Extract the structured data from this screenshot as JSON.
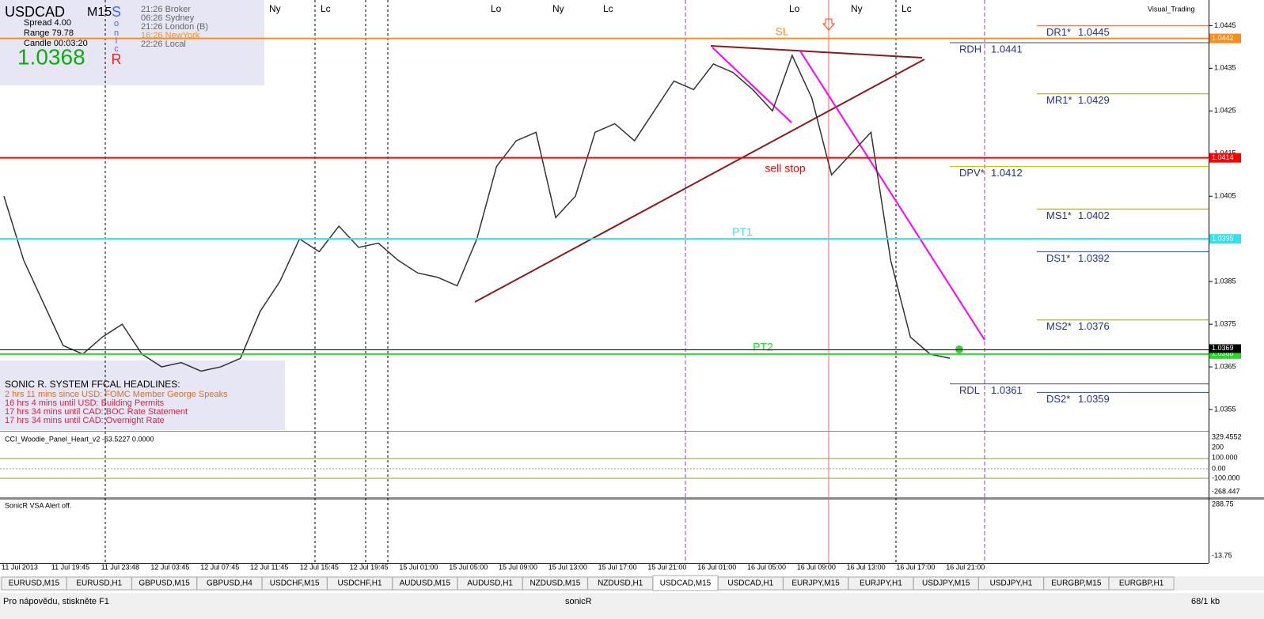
{
  "info": {
    "symbol": "USDCAD",
    "timeframe": "M15",
    "spread": "Spread   4.00",
    "range": "Range   79.78",
    "candle": "Candle   00:03:20",
    "price": "1.0368",
    "sonic": [
      "S",
      "o",
      "n",
      "i",
      "c",
      "R"
    ],
    "clocks": [
      "21:26 Broker",
      "06:26 Sydney",
      "21:26 London (B)",
      "16:26 NewYork",
      "22:26 Local"
    ]
  },
  "corner_label": "Visual_Trading",
  "sessions": [
    "Ny",
    "Lc",
    "Lo",
    "Ny",
    "Lc",
    "Lo",
    "Ny",
    "Lc"
  ],
  "price_chart": {
    "ylim": [
      1.035,
      1.0451
    ],
    "yticks": [
      1.0445,
      1.0435,
      1.0425,
      1.0415,
      1.0405,
      1.0395,
      1.0385,
      1.0375,
      1.0365,
      1.0355
    ],
    "closes": [
      1.0405,
      1.039,
      1.038,
      1.037,
      1.0368,
      1.0372,
      1.0375,
      1.0368,
      1.0365,
      1.0366,
      1.0364,
      1.0365,
      1.0367,
      1.0378,
      1.0385,
      1.0395,
      1.0392,
      1.0398,
      1.0393,
      1.0394,
      1.039,
      1.0387,
      1.0386,
      1.0384,
      1.0395,
      1.0412,
      1.0418,
      1.042,
      1.04,
      1.0405,
      1.042,
      1.0422,
      1.0418,
      1.0425,
      1.0432,
      1.043,
      1.0436,
      1.0434,
      1.043,
      1.0425,
      1.0438,
      1.0428,
      1.041,
      1.0415,
      1.042,
      1.039,
      1.0372,
      1.0368,
      1.0367
    ]
  },
  "levels": [
    {
      "label": "SL",
      "value": 1.0442,
      "color": "#ff8c1a"
    },
    {
      "label": "sell stop",
      "value": 1.0414,
      "color": "#ff0000"
    },
    {
      "label": "PT1",
      "value": 1.0395,
      "color": "#33e0ee"
    },
    {
      "label": "PT2",
      "value": 1.0368,
      "color": "#22dd22"
    }
  ],
  "bid_line": 1.0369,
  "pivots_daily": [
    {
      "name": "RDH",
      "value": 1.0441,
      "color": "#3344aa"
    },
    {
      "name": "DPV*",
      "value": 1.0412,
      "color": "#c8c800"
    },
    {
      "name": "RDL",
      "value": 1.0361,
      "color": "#3344aa"
    }
  ],
  "pivots_weekly": [
    {
      "name": "DR1*",
      "value": 1.0445,
      "color": "#ff6040"
    },
    {
      "name": "MR1*",
      "value": 1.0429,
      "color": "#999933"
    },
    {
      "name": "MS1*",
      "value": 1.0402,
      "color": "#999933"
    },
    {
      "name": "DS1*",
      "value": 1.0392,
      "color": "#3344aa"
    },
    {
      "name": "MS2*",
      "value": 1.0376,
      "color": "#999933"
    },
    {
      "name": "DS2*",
      "value": 1.0359,
      "color": "#3344aa"
    }
  ],
  "headlines": {
    "title": "SONIC R. SYSTEM  FFCAL HEADLINES:",
    "items": [
      "2 hrs 11 mins since USD: FOMC Member George Speaks",
      "16 hrs 4 mins until USD: Building Permits",
      "17 hrs 34 mins until CAD: BOC Rate Statement",
      "17 hrs 34 mins until CAD: Overnight Rate"
    ]
  },
  "cci": {
    "label": "CCI_Woodie_Panel_Heart_v2 -63.5227 0.0000",
    "ticks": [
      "329.4552",
      "200",
      "100.000",
      "0.00",
      "-100.000",
      "-268.447"
    ]
  },
  "vsa": {
    "label": "SonicR VSA   Alert off.",
    "ticks": [
      "288.75",
      "-13.75"
    ]
  },
  "time_axis": [
    "11 Jul 2013",
    "11 Jul 19:45",
    "11 Jul 23:48",
    "12 Jul 03:45",
    "12 Jul 07:45",
    "12 Jul 11:45",
    "12 Jul 15:45",
    "12 Jul 19:45",
    "15 Jul 01:00",
    "15 Jul 05:00",
    "15 Jul 09:00",
    "15 Jul 13:00",
    "15 Jul 17:00",
    "15 Jul 21:00",
    "16 Jul 01:00",
    "16 Jul 05:00",
    "16 Jul 09:00",
    "16 Jul 13:00",
    "16 Jul 17:00",
    "16 Jul 21:00"
  ],
  "tabs": [
    "EURUSD,M15",
    "EURUSD,H1",
    "GBPUSD,M15",
    "GBPUSD,H4",
    "USDCHF,M15",
    "USDCHF,H1",
    "AUDUSD,M15",
    "AUDUSD,H1",
    "NZDUSD,M15",
    "NZDUSD,H1",
    "USDCAD,M15",
    "USDCAD,H1",
    "EURJPY,M15",
    "EURJPY,H1",
    "USDJPY,M15",
    "USDJPY,H1",
    "EURGBP,M15",
    "EURGBP,H1"
  ],
  "active_tab": "USDCAD,M15",
  "status": {
    "help": "Pro nápovědu, stiskněte F1",
    "profile": "sonicR",
    "traffic": "68/1 kb"
  }
}
